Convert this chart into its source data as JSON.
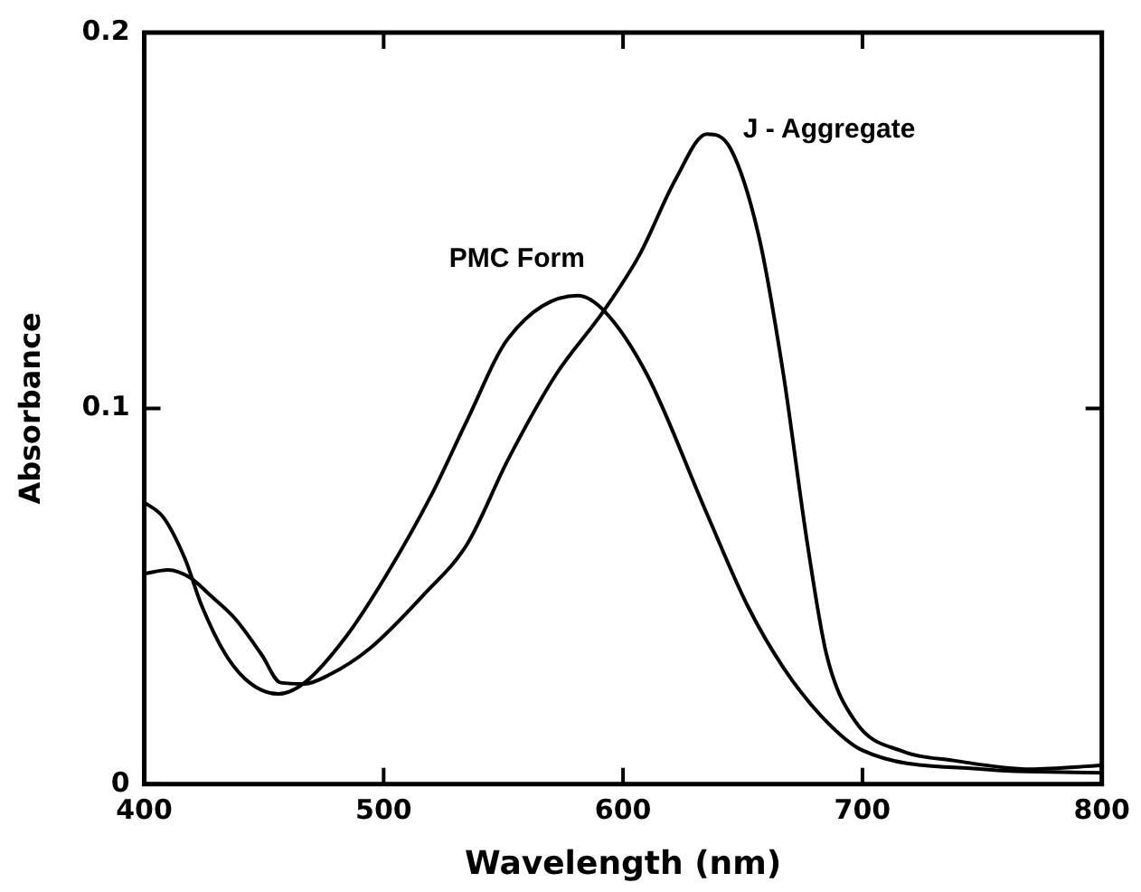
{
  "chart_data": {
    "type": "line",
    "xlabel": "Wavelength (nm)",
    "ylabel": "Absorbance",
    "xlim": [
      400,
      800
    ],
    "xticks": [
      400,
      500,
      600,
      700,
      800
    ],
    "ylim": [
      0,
      0.2
    ],
    "yticks": [
      0,
      0.1,
      0.2
    ],
    "grid": false,
    "legend": false,
    "marker": "none",
    "line_style": "solid",
    "series": [
      {
        "name": "PMC Form",
        "color": "#000000",
        "x": [
          400,
          408,
          417,
          424,
          434,
          444,
          456,
          467,
          484,
          501,
          520,
          535,
          552,
          581,
          592,
          610,
          635,
          652,
          667,
          683,
          700,
          750,
          800
        ],
        "values": [
          0.075,
          0.071,
          0.06,
          0.0475,
          0.0345,
          0.027,
          0.024,
          0.027,
          0.039,
          0.0555,
          0.077,
          0.097,
          0.1186,
          0.13,
          0.126,
          0.109,
          0.072,
          0.0475,
          0.031,
          0.018,
          0.009,
          0.004,
          0.003
        ]
      },
      {
        "name": "J - Aggregate",
        "color": "#000000",
        "x": [
          400,
          410,
          419,
          428,
          438,
          449,
          457,
          467,
          477,
          494,
          517,
          535,
          552,
          572,
          592,
          607,
          622,
          635,
          645,
          657,
          667,
          677,
          685,
          697,
          717,
          738,
          770,
          800
        ],
        "values": [
          0.056,
          0.057,
          0.055,
          0.05,
          0.044,
          0.0345,
          0.027,
          0.0267,
          0.029,
          0.036,
          0.0506,
          0.064,
          0.0864,
          0.109,
          0.126,
          0.141,
          0.161,
          0.173,
          0.169,
          0.145,
          0.109,
          0.064,
          0.0345,
          0.0167,
          0.0087,
          0.0063,
          0.004,
          0.005
        ]
      }
    ]
  }
}
